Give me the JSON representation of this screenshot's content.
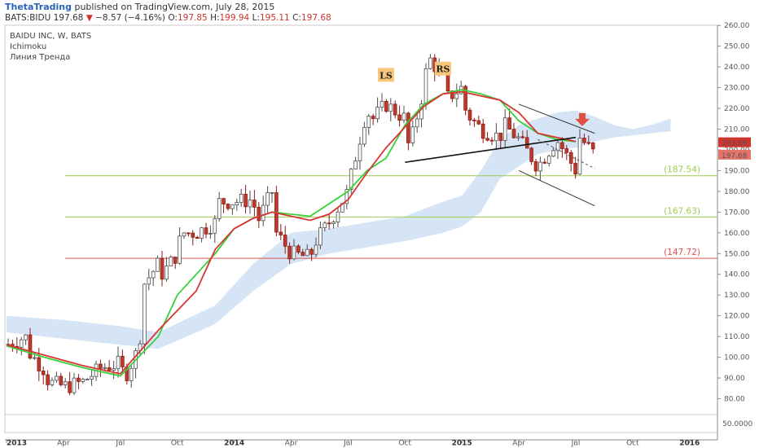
{
  "header": {
    "author": "ThetaTrading",
    "published_text": "published on TradingView.com, July 28, 2015",
    "symbol": "BATS:BIDU",
    "last": "197.68",
    "change": "−8.57 (−4.16%)",
    "o_label": "O:",
    "o_value": "197.85",
    "h_label": "H:",
    "h_value": "199.94",
    "l_label": "L:",
    "l_value": "195.11",
    "c_label": "C:",
    "c_value": "197.68"
  },
  "chart_data": {
    "type": "candlestick",
    "title": "BAIDU INC, W, BATS",
    "indicators": [
      "Ichimoku",
      "Линия Тренда"
    ],
    "y_ticks": [
      80,
      90,
      100,
      110,
      120,
      130,
      140,
      150,
      160,
      170,
      180,
      190,
      200,
      210,
      220,
      230,
      240,
      250,
      260
    ],
    "y_tick_labels": [
      "80.00",
      "90.00",
      "100.00",
      "110.00",
      "120.00",
      "130.00",
      "140.00",
      "150.00",
      "160.00",
      "170.00",
      "180.00",
      "190.00",
      "200.00",
      "210.00",
      "220.00",
      "230.00",
      "240.00",
      "250.00",
      "260.00"
    ],
    "sub_tick_label": "50.0000",
    "x_ticks": [
      {
        "label": "2013",
        "date": "2013-01",
        "bold": true
      },
      {
        "label": "Apr",
        "date": "2013-04",
        "bold": false
      },
      {
        "label": "Jul",
        "date": "2013-07",
        "bold": false
      },
      {
        "label": "Oct",
        "date": "2013-10",
        "bold": false
      },
      {
        "label": "2014",
        "date": "2014-01",
        "bold": true
      },
      {
        "label": "Apr",
        "date": "2014-04",
        "bold": false
      },
      {
        "label": "Jul",
        "date": "2014-07",
        "bold": false
      },
      {
        "label": "Oct",
        "date": "2014-10",
        "bold": false
      },
      {
        "label": "2015",
        "date": "2015-01",
        "bold": true
      },
      {
        "label": "Apr",
        "date": "2015-04",
        "bold": false
      },
      {
        "label": "Jul",
        "date": "2015-07",
        "bold": false
      },
      {
        "label": "Oct",
        "date": "2015-10",
        "bold": false
      },
      {
        "label": "2016",
        "date": "2016-01",
        "bold": true
      }
    ],
    "close_path": [
      [
        "2013-01",
        106
      ],
      [
        "2013-02",
        110
      ],
      [
        "2013-02",
        102
      ],
      [
        "2013-03",
        94
      ],
      [
        "2013-03",
        88
      ],
      [
        "2013-04",
        86
      ],
      [
        "2013-04",
        86
      ],
      [
        "2013-05",
        88
      ],
      [
        "2013-06",
        95
      ],
      [
        "2013-07",
        97
      ],
      [
        "2013-07",
        90
      ],
      [
        "2013-08",
        105
      ],
      [
        "2013-08",
        135
      ],
      [
        "2013-09",
        145
      ],
      [
        "2013-09",
        140
      ],
      [
        "2013-10",
        150
      ],
      [
        "2013-10",
        160
      ],
      [
        "2013-11",
        160
      ],
      [
        "2013-12",
        165
      ],
      [
        "2013-12",
        175
      ],
      [
        "2014-01",
        175
      ],
      [
        "2014-02",
        176
      ],
      [
        "2014-02",
        165
      ],
      [
        "2014-03",
        180
      ],
      [
        "2014-03",
        160
      ],
      [
        "2014-04",
        150
      ],
      [
        "2014-05",
        148
      ],
      [
        "2014-05",
        155
      ],
      [
        "2014-06",
        165
      ],
      [
        "2014-07",
        180
      ],
      [
        "2014-07",
        190
      ],
      [
        "2014-08",
        220
      ],
      [
        "2014-08",
        214
      ],
      [
        "2014-09",
        222
      ],
      [
        "2014-10",
        215
      ],
      [
        "2014-10",
        200
      ],
      [
        "2014-11",
        230
      ],
      [
        "2014-11",
        245
      ],
      [
        "2014-12",
        235
      ],
      [
        "2014-12",
        225
      ],
      [
        "2015-01",
        230
      ],
      [
        "2015-01",
        218
      ],
      [
        "2015-02",
        210
      ],
      [
        "2015-03",
        206
      ],
      [
        "2015-03",
        212
      ],
      [
        "2015-04",
        205
      ],
      [
        "2015-05",
        192
      ],
      [
        "2015-05",
        195
      ],
      [
        "2015-06",
        205
      ],
      [
        "2015-06",
        202
      ],
      [
        "2015-07",
        190
      ],
      [
        "2015-07",
        206
      ],
      [
        "2015-08",
        197.68
      ]
    ],
    "conversion_line": [
      [
        "2013-01",
        105.5
      ],
      [
        "2013-03",
        100
      ],
      [
        "2013-05",
        95
      ],
      [
        "2013-07",
        91
      ],
      [
        "2013-09",
        110
      ],
      [
        "2013-10",
        130
      ],
      [
        "2013-12",
        150
      ],
      [
        "2014-01",
        162
      ],
      [
        "2014-02",
        167
      ],
      [
        "2014-03",
        170
      ],
      [
        "2014-05",
        168
      ],
      [
        "2014-07",
        180
      ],
      [
        "2014-08",
        190
      ],
      [
        "2014-09",
        196
      ],
      [
        "2014-10",
        212
      ],
      [
        "2014-11",
        222
      ],
      [
        "2014-12",
        227
      ],
      [
        "2015-01",
        229
      ],
      [
        "2015-02",
        227
      ],
      [
        "2015-03",
        224
      ],
      [
        "2015-04",
        214
      ],
      [
        "2015-05",
        208
      ],
      [
        "2015-06",
        205
      ],
      [
        "2015-07",
        204
      ]
    ],
    "base_line": [
      [
        "2013-01",
        106
      ],
      [
        "2013-03",
        101
      ],
      [
        "2013-05",
        96
      ],
      [
        "2013-07",
        92
      ],
      [
        "2013-09",
        113
      ],
      [
        "2013-11",
        132
      ],
      [
        "2013-12",
        152
      ],
      [
        "2014-01",
        162
      ],
      [
        "2014-02",
        167
      ],
      [
        "2014-03",
        170
      ],
      [
        "2014-05",
        166
      ],
      [
        "2014-06",
        169
      ],
      [
        "2014-07",
        176
      ],
      [
        "2014-08",
        189
      ],
      [
        "2014-09",
        201
      ],
      [
        "2014-10",
        211
      ],
      [
        "2014-11",
        221
      ],
      [
        "2014-12",
        227
      ],
      [
        "2015-01",
        228
      ],
      [
        "2015-02",
        226
      ],
      [
        "2015-03",
        224
      ],
      [
        "2015-04",
        218
      ],
      [
        "2015-05",
        208
      ],
      [
        "2015-06",
        206
      ],
      [
        "2015-07",
        204
      ]
    ],
    "cloud_upper": [
      [
        "2013-01",
        120
      ],
      [
        "2013-04",
        118
      ],
      [
        "2013-07",
        115
      ],
      [
        "2013-09",
        112
      ],
      [
        "2013-12",
        125
      ],
      [
        "2014-02",
        145
      ],
      [
        "2014-04",
        160
      ],
      [
        "2014-06",
        162
      ],
      [
        "2014-08",
        165
      ],
      [
        "2014-10",
        168
      ],
      [
        "2014-12",
        175
      ],
      [
        "2015-01",
        178
      ],
      [
        "2015-02",
        190
      ],
      [
        "2015-03",
        205
      ],
      [
        "2015-04",
        212
      ],
      [
        "2015-05",
        215
      ],
      [
        "2015-06",
        218
      ],
      [
        "2015-07",
        219
      ],
      [
        "2015-08",
        216
      ],
      [
        "2015-09",
        212
      ],
      [
        "2015-10",
        210
      ],
      [
        "2015-11",
        212
      ],
      [
        "2015-12",
        215
      ]
    ],
    "cloud_lower": [
      [
        "2013-01",
        112
      ],
      [
        "2013-04",
        109
      ],
      [
        "2013-07",
        106
      ],
      [
        "2013-09",
        104
      ],
      [
        "2013-12",
        116
      ],
      [
        "2014-02",
        132
      ],
      [
        "2014-04",
        145
      ],
      [
        "2014-06",
        150
      ],
      [
        "2014-08",
        153
      ],
      [
        "2014-10",
        156
      ],
      [
        "2014-12",
        160
      ],
      [
        "2015-01",
        163
      ],
      [
        "2015-02",
        170
      ],
      [
        "2015-03",
        186
      ],
      [
        "2015-04",
        192
      ],
      [
        "2015-05",
        198
      ],
      [
        "2015-06",
        200
      ],
      [
        "2015-07",
        201
      ],
      [
        "2015-08",
        204
      ],
      [
        "2015-09",
        206
      ],
      [
        "2015-10",
        207
      ],
      [
        "2015-11",
        208
      ],
      [
        "2015-12",
        209
      ]
    ],
    "levels": [
      {
        "value": 187.54,
        "label": "(187.54)",
        "color": "#9ccc50"
      },
      {
        "value": 167.63,
        "label": "(167.63)",
        "color": "#9ccc50"
      },
      {
        "value": 147.72,
        "label": "(147.72)",
        "color": "#e05050"
      }
    ],
    "neckline": [
      [
        "2014-10",
        194
      ],
      [
        "2015-07",
        206
      ]
    ],
    "channel_upper": [
      [
        "2015-04",
        222
      ],
      [
        "2015-08",
        208
      ]
    ],
    "channel_lower": [
      [
        "2015-04",
        190
      ],
      [
        "2015-08",
        173
      ]
    ],
    "channel_mid": [
      [
        "2015-05",
        205
      ],
      [
        "2015-08",
        191
      ]
    ],
    "annotations": [
      {
        "text": "LS",
        "date": "2014-09",
        "value": 236
      },
      {
        "text": "RS",
        "date": "2014-12",
        "value": 239
      }
    ],
    "arrow": {
      "date": "2015-07",
      "value": 213
    },
    "price_tags": [
      {
        "text": "203.66",
        "value": 203.66,
        "color": "#d0342c"
      },
      {
        "text": "197.68",
        "value": 197.68,
        "color": "#e57368"
      }
    ]
  }
}
